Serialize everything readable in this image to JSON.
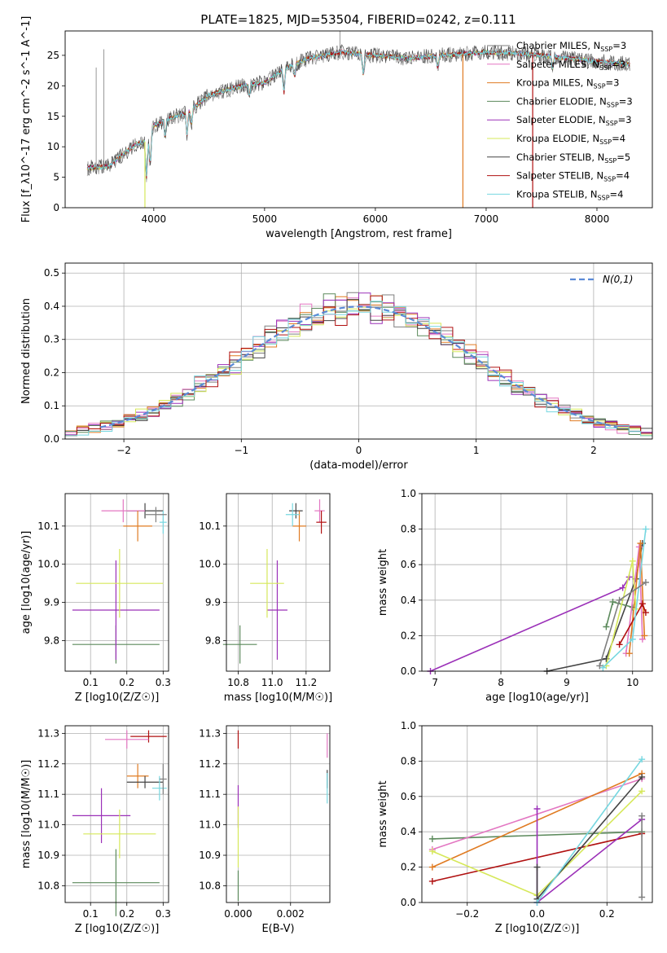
{
  "figure_title": "PLATE=1825, MJD=53504, FIBERID=0242, z=0.111",
  "models": [
    {
      "name": "Chabrier MILES, N_SSP=3",
      "color": "#7f7f7f"
    },
    {
      "name": "Salpeter MILES, N_SSP=3",
      "color": "#e377c2"
    },
    {
      "name": "Kroupa MILES, N_SSP=3",
      "color": "#e07b22"
    },
    {
      "name": "Chabrier ELODIE, N_SSP=3",
      "color": "#5c8a5c"
    },
    {
      "name": "Salpeter ELODIE, N_SSP=3",
      "color": "#9b30b8"
    },
    {
      "name": "Kroupa ELODIE, N_SSP=4",
      "color": "#d6e85a"
    },
    {
      "name": "Chabrier STELIB, N_SSP=5",
      "color": "#444444"
    },
    {
      "name": "Salpeter STELIB, N_SSP=4",
      "color": "#b01010"
    },
    {
      "name": "Kroupa STELIB, N_SSP=4",
      "color": "#76d7e0"
    }
  ],
  "chart_data": [
    {
      "id": "spectrum",
      "type": "line",
      "xlabel": "wavelength [Angstrom, rest frame]",
      "ylabel": "Flux [f_λ10^-17 erg cm^-2 s^-1 A^-1]",
      "xlim": [
        3200,
        8500
      ],
      "ylim": [
        0,
        29
      ],
      "xticks": [
        4000,
        5000,
        6000,
        7000,
        8000
      ],
      "yticks": [
        0,
        5,
        10,
        15,
        20,
        25
      ],
      "grid": false,
      "legend": "top-right",
      "continuum": [
        [
          3400,
          6.5
        ],
        [
          3600,
          6.8
        ],
        [
          3700,
          8.5
        ],
        [
          3850,
          10.5
        ],
        [
          3950,
          11
        ],
        [
          4000,
          13.5
        ],
        [
          4200,
          15
        ],
        [
          4300,
          15.5
        ],
        [
          4500,
          18.5
        ],
        [
          4800,
          20
        ],
        [
          5000,
          20.5
        ],
        [
          5200,
          23
        ],
        [
          5400,
          24.5
        ],
        [
          5700,
          25.5
        ],
        [
          6000,
          25
        ],
        [
          6300,
          24.5
        ],
        [
          6600,
          25
        ],
        [
          7000,
          25.5
        ],
        [
          7300,
          25.3
        ],
        [
          7600,
          24.8
        ],
        [
          8000,
          24
        ],
        [
          8300,
          23.5
        ]
      ],
      "absorption": [
        [
          3934,
          6
        ],
        [
          3968,
          5
        ],
        [
          4102,
          2.5
        ],
        [
          4300,
          3.5
        ],
        [
          4340,
          2.5
        ],
        [
          4861,
          2
        ],
        [
          5175,
          4
        ],
        [
          5270,
          2
        ],
        [
          5892,
          3.5
        ],
        [
          6563,
          2
        ],
        [
          7600,
          2
        ]
      ],
      "dips": [
        {
          "x": 3920,
          "color": "#d6e85a"
        },
        {
          "x": 6790,
          "color": "#e07b22"
        },
        {
          "x": 7420,
          "color": "#b01010"
        }
      ],
      "spikes": [
        {
          "x": 3550,
          "y": 26,
          "color": "#7f7f7f"
        },
        {
          "x": 3480,
          "y": 23,
          "color": "#7f7f7f"
        },
        {
          "x": 5680,
          "y": 29,
          "color": "#7f7f7f"
        }
      ]
    },
    {
      "id": "residuals",
      "type": "histogram",
      "xlabel": "(data-model)/error",
      "ylabel": "Normed distribution",
      "xlim": [
        -2.5,
        2.5
      ],
      "ylim": [
        0,
        0.53
      ],
      "xticks": [
        -2,
        -1,
        0,
        1,
        2
      ],
      "yticks": [
        0.0,
        0.1,
        0.2,
        0.3,
        0.4,
        0.5
      ],
      "grid": true,
      "legend": "top-right",
      "reference_series": "N(0,1)",
      "bin_width": 0.1
    },
    {
      "id": "age-vs-Z",
      "type": "errorbar",
      "xlabel": "Z [log10(Z/Z☉)]",
      "ylabel": "age [log10(age/yr)]",
      "xlim": [
        0.03,
        0.315
      ],
      "ylim": [
        9.72,
        10.185
      ],
      "xticks": [
        0.1,
        0.2,
        0.3
      ],
      "yticks": [
        9.8,
        9.9,
        10.0,
        10.1
      ],
      "grid": true,
      "points": [
        {
          "m": 6,
          "x": 0.25,
          "xe": 0.05,
          "y": 10.14,
          "ye": 0.02
        },
        {
          "m": 1,
          "x": 0.19,
          "xe": 0.06,
          "y": 10.14,
          "ye": 0.03
        },
        {
          "m": 2,
          "x": 0.23,
          "xe": 0.04,
          "y": 10.1,
          "ye": 0.04
        },
        {
          "m": 8,
          "x": 0.3,
          "xe": 0.01,
          "y": 10.11,
          "ye": 0.03
        },
        {
          "m": 0,
          "x": 0.28,
          "xe": 0.03,
          "y": 10.13,
          "ye": 0.02
        },
        {
          "m": 3,
          "x": 0.17,
          "xe": 0.12,
          "y": 9.79,
          "ye": 0.05
        },
        {
          "m": 4,
          "x": 0.17,
          "xe": 0.12,
          "y": 9.88,
          "ye": 0.13
        },
        {
          "m": 5,
          "x": 0.18,
          "xe": 0.12,
          "y": 9.95,
          "ye": 0.09
        }
      ]
    },
    {
      "id": "age-vs-mass",
      "type": "errorbar",
      "xlabel": "mass [log10(M/M☉)]",
      "ylabel": "",
      "xlim": [
        10.73,
        11.34
      ],
      "ylim": [
        9.72,
        10.185
      ],
      "xticks": [
        10.8,
        11.0,
        11.2
      ],
      "yticks": [
        9.8,
        9.9,
        10.0,
        10.1
      ],
      "grid": true,
      "points": [
        {
          "m": 6,
          "x": 11.14,
          "xe": 0.04,
          "y": 10.14,
          "ye": 0.02
        },
        {
          "m": 1,
          "x": 11.28,
          "xe": 0.03,
          "y": 10.14,
          "ye": 0.03
        },
        {
          "m": 2,
          "x": 11.16,
          "xe": 0.04,
          "y": 10.1,
          "ye": 0.04
        },
        {
          "m": 8,
          "x": 11.12,
          "xe": 0.04,
          "y": 10.13,
          "ye": 0.03
        },
        {
          "m": 7,
          "x": 11.29,
          "xe": 0.03,
          "y": 10.11,
          "ye": 0.03
        },
        {
          "m": 3,
          "x": 10.81,
          "xe": 0.1,
          "y": 9.79,
          "ye": 0.05
        },
        {
          "m": 4,
          "x": 11.03,
          "xe": 0.06,
          "y": 9.88,
          "ye": 0.13
        },
        {
          "m": 5,
          "x": 10.97,
          "xe": 0.1,
          "y": 9.95,
          "ye": 0.09
        }
      ]
    },
    {
      "id": "mass-weight-vs-age",
      "type": "line",
      "xlabel": "age [log10(age/yr)]",
      "ylabel": "mass weight",
      "xlim": [
        6.8,
        10.3
      ],
      "ylim": [
        0,
        1
      ],
      "xticks": [
        7,
        8,
        9,
        10
      ],
      "yticks": [
        0.0,
        0.2,
        0.4,
        0.6,
        0.8,
        1.0
      ],
      "grid": true,
      "series": [
        {
          "m": 4,
          "points": [
            [
              6.93,
              0.0
            ],
            [
              9.85,
              0.47
            ],
            [
              9.95,
              0.53
            ]
          ]
        },
        {
          "m": 6,
          "points": [
            [
              8.7,
              0.0
            ],
            [
              9.6,
              0.07
            ],
            [
              10.05,
              0.52
            ],
            [
              10.15,
              0.72
            ]
          ]
        },
        {
          "m": 3,
          "points": [
            [
              9.6,
              0.25
            ],
            [
              9.7,
              0.39
            ],
            [
              10.0,
              0.36
            ]
          ]
        },
        {
          "m": 1,
          "points": [
            [
              9.9,
              0.1
            ],
            [
              10.1,
              0.7
            ],
            [
              10.15,
              0.18
            ]
          ]
        },
        {
          "m": 2,
          "points": [
            [
              9.95,
              0.1
            ],
            [
              10.12,
              0.72
            ],
            [
              10.18,
              0.2
            ]
          ]
        },
        {
          "m": 7,
          "points": [
            [
              9.8,
              0.15
            ],
            [
              10.15,
              0.38
            ],
            [
              10.2,
              0.33
            ]
          ]
        },
        {
          "m": 5,
          "points": [
            [
              9.6,
              0.03
            ],
            [
              10.0,
              0.62
            ],
            [
              10.05,
              0.35
            ]
          ]
        },
        {
          "m": 8,
          "points": [
            [
              9.55,
              0.02
            ],
            [
              10.0,
              0.18
            ],
            [
              10.2,
              0.8
            ]
          ]
        },
        {
          "m": 0,
          "points": [
            [
              9.5,
              0.03
            ],
            [
              9.8,
              0.4
            ],
            [
              10.2,
              0.5
            ]
          ]
        }
      ]
    },
    {
      "id": "mass-vs-Z",
      "type": "errorbar",
      "xlabel": "Z [log10(Z/Z☉)]",
      "ylabel": "mass [log10(M/M☉)]",
      "xlim": [
        0.03,
        0.315
      ],
      "ylim": [
        10.745,
        11.325
      ],
      "xticks": [
        0.1,
        0.2,
        0.3
      ],
      "yticks": [
        10.8,
        10.9,
        11.0,
        11.1,
        11.2,
        11.3
      ],
      "grid": true,
      "points": [
        {
          "m": 7,
          "x": 0.26,
          "xe": 0.05,
          "y": 11.29,
          "ye": 0.02
        },
        {
          "m": 1,
          "x": 0.2,
          "xe": 0.06,
          "y": 11.28,
          "ye": 0.03
        },
        {
          "m": 2,
          "x": 0.23,
          "xe": 0.03,
          "y": 11.16,
          "ye": 0.04
        },
        {
          "m": 6,
          "x": 0.25,
          "xe": 0.05,
          "y": 11.14,
          "ye": 0.02
        },
        {
          "m": 8,
          "x": 0.29,
          "xe": 0.02,
          "y": 11.12,
          "ye": 0.04
        },
        {
          "m": 0,
          "x": 0.3,
          "xe": 0.01,
          "y": 11.15,
          "ye": 0.05
        },
        {
          "m": 4,
          "x": 0.13,
          "xe": 0.08,
          "y": 11.03,
          "ye": 0.09
        },
        {
          "m": 5,
          "x": 0.18,
          "xe": 0.1,
          "y": 10.97,
          "ye": 0.08
        },
        {
          "m": 3,
          "x": 0.17,
          "xe": 0.12,
          "y": 10.81,
          "ye": 0.11
        }
      ]
    },
    {
      "id": "mass-vs-EBV",
      "type": "errorbar",
      "xlabel": "E(B-V)",
      "ylabel": "",
      "xlim": [
        -0.00045,
        0.0035
      ],
      "ylim": [
        10.745,
        11.325
      ],
      "xticks": [
        0.0,
        0.002
      ],
      "xtick_labels": [
        "0.000",
        "0.002"
      ],
      "yticks": [
        10.8,
        10.9,
        11.0,
        11.1,
        11.2,
        11.3
      ],
      "grid": true,
      "points": [
        {
          "m": 7,
          "x": 0.0,
          "xe": 0,
          "y": 11.28,
          "ye": 0.03
        },
        {
          "m": 4,
          "x": 0.0,
          "xe": 0,
          "y": 11.06,
          "ye": 0.07
        },
        {
          "m": 5,
          "x": 0.0,
          "xe": 0,
          "y": 10.96,
          "ye": 0.1
        },
        {
          "m": 3,
          "x": 0.0,
          "xe": 0,
          "y": 10.8,
          "ye": 0.05
        },
        {
          "m": 1,
          "x": 0.0034,
          "xe": 0,
          "y": 11.26,
          "ye": 0.04
        },
        {
          "m": 6,
          "x": 0.0034,
          "xe": 0,
          "y": 11.15,
          "ye": 0.03
        },
        {
          "m": 8,
          "x": 0.0034,
          "xe": 0,
          "y": 11.12,
          "ye": 0.05
        }
      ]
    },
    {
      "id": "mass-weight-vs-Z",
      "type": "line",
      "xlabel": "Z [log10(Z/Z☉)]",
      "ylabel": "mass weight",
      "xlim": [
        -0.33,
        0.33
      ],
      "ylim": [
        0,
        1
      ],
      "xticks": [
        -0.2,
        0.0,
        0.2
      ],
      "yticks": [
        0.0,
        0.2,
        0.4,
        0.6,
        0.8,
        1.0
      ],
      "grid": true,
      "series": [
        {
          "m": 3,
          "points": [
            [
              -0.3,
              0.36
            ],
            [
              0.3,
              0.4
            ]
          ]
        },
        {
          "m": 1,
          "points": [
            [
              -0.3,
              0.3
            ],
            [
              0.3,
              0.7
            ]
          ]
        },
        {
          "m": 2,
          "points": [
            [
              -0.3,
              0.2
            ],
            [
              0.3,
              0.73
            ]
          ]
        },
        {
          "m": 7,
          "points": [
            [
              -0.3,
              0.12
            ],
            [
              0.3,
              0.39
            ]
          ]
        },
        {
          "m": 5,
          "points": [
            [
              -0.3,
              0.29
            ],
            [
              0.0,
              0.04
            ],
            [
              0.3,
              0.63
            ]
          ]
        },
        {
          "m": 4,
          "points": [
            [
              0.0,
              0.53
            ],
            [
              0.0,
              0.0
            ],
            [
              0.3,
              0.47
            ]
          ]
        },
        {
          "m": 6,
          "points": [
            [
              0.0,
              0.2
            ],
            [
              0.0,
              0.02
            ],
            [
              0.3,
              0.71
            ]
          ]
        },
        {
          "m": 8,
          "points": [
            [
              0.0,
              0.0
            ],
            [
              0.3,
              0.81
            ]
          ]
        },
        {
          "m": 0,
          "points": [
            [
              0.3,
              0.49
            ],
            [
              0.3,
              0.03
            ]
          ]
        }
      ]
    }
  ]
}
